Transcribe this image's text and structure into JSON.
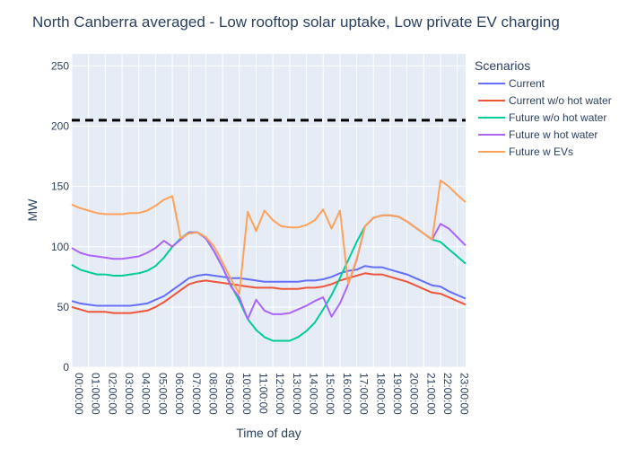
{
  "chart_data": {
    "type": "line",
    "title": "North Canberra averaged - Low rooftop solar uptake, Low private EV charging",
    "xlabel": "Time of day",
    "ylabel": "MW",
    "ylim": [
      0,
      260
    ],
    "yticks": [
      0,
      50,
      100,
      150,
      200,
      250
    ],
    "xlim": [
      0,
      23.5
    ],
    "xtick_labels": [
      "00:00:00",
      "01:00:00",
      "02:00:00",
      "03:00:00",
      "04:00:00",
      "05:00:00",
      "06:00:00",
      "07:00:00",
      "08:00:00",
      "09:00:00",
      "10:00:00",
      "11:00:00",
      "12:00:00",
      "13:00:00",
      "14:00:00",
      "15:00:00",
      "16:00:00",
      "17:00:00",
      "18:00:00",
      "19:00:00",
      "20:00:00",
      "21:00:00",
      "22:00:00",
      "23:00:00"
    ],
    "legend_title": "Scenarios",
    "legend_position": "right",
    "reference_line": {
      "y": 205,
      "style": "dashed",
      "color": "#000000"
    },
    "x": [
      0,
      0.5,
      1,
      1.5,
      2,
      2.5,
      3,
      3.5,
      4,
      4.5,
      5,
      5.5,
      6,
      6.5,
      7,
      7.5,
      8,
      8.5,
      9,
      9.5,
      10,
      10.5,
      11,
      11.5,
      12,
      12.5,
      13,
      13.5,
      14,
      14.5,
      15,
      15.5,
      16,
      16.5,
      17,
      17.5,
      18,
      18.5,
      19,
      19.5,
      20,
      20.5,
      21,
      21.5,
      22,
      22.5,
      23,
      23.5
    ],
    "series": [
      {
        "name": "Current",
        "color": "#636efa",
        "values": [
          55,
          53,
          52,
          51,
          51,
          51,
          51,
          51,
          52,
          53,
          56,
          59,
          64,
          69,
          74,
          76,
          77,
          76,
          75,
          74,
          74,
          73,
          72,
          71,
          71,
          71,
          71,
          71,
          72,
          72,
          73,
          75,
          78,
          80,
          81,
          84,
          83,
          83,
          81,
          79,
          77,
          74,
          71,
          68,
          67,
          63,
          60,
          57
        ]
      },
      {
        "name": "Current w/o hot water",
        "color": "#ef553b",
        "values": [
          50,
          48,
          46,
          46,
          46,
          45,
          45,
          45,
          46,
          47,
          50,
          54,
          59,
          64,
          69,
          71,
          72,
          71,
          70,
          69,
          68,
          67,
          66,
          66,
          66,
          65,
          65,
          65,
          66,
          66,
          67,
          69,
          72,
          74,
          76,
          78,
          77,
          77,
          75,
          73,
          71,
          68,
          65,
          62,
          61,
          58,
          55,
          52
        ]
      },
      {
        "name": "Future w/o hot water",
        "color": "#00cc96",
        "values": [
          85,
          81,
          79,
          77,
          77,
          76,
          76,
          77,
          78,
          80,
          84,
          91,
          100,
          107,
          112,
          112,
          107,
          96,
          83,
          68,
          55,
          40,
          31,
          25,
          22,
          22,
          22,
          25,
          30,
          37,
          48,
          60,
          74,
          89,
          104,
          117,
          124,
          126,
          126,
          125,
          121,
          116,
          111,
          106,
          104,
          98,
          92,
          86
        ]
      },
      {
        "name": "Future w hot water",
        "color": "#ab63fa",
        "values": [
          99,
          95,
          93,
          92,
          91,
          90,
          90,
          91,
          92,
          95,
          99,
          105,
          100,
          106,
          112,
          112,
          107,
          96,
          83,
          67,
          58,
          40,
          56,
          47,
          44,
          44,
          45,
          48,
          51,
          55,
          58,
          42,
          53,
          69,
          89,
          117,
          124,
          126,
          126,
          125,
          121,
          116,
          111,
          106,
          119,
          115,
          108,
          101
        ]
      },
      {
        "name": "Future w EVs",
        "color": "#fea15a",
        "values": [
          135,
          132,
          130,
          128,
          127,
          127,
          127,
          128,
          128,
          130,
          134,
          139,
          142,
          107,
          111,
          112,
          108,
          100,
          87,
          73,
          61,
          129,
          113,
          130,
          122,
          117,
          116,
          116,
          118,
          122,
          131,
          115,
          130,
          69,
          90,
          117,
          124,
          126,
          126,
          125,
          121,
          116,
          111,
          106,
          155,
          150,
          143,
          137
        ]
      }
    ]
  }
}
